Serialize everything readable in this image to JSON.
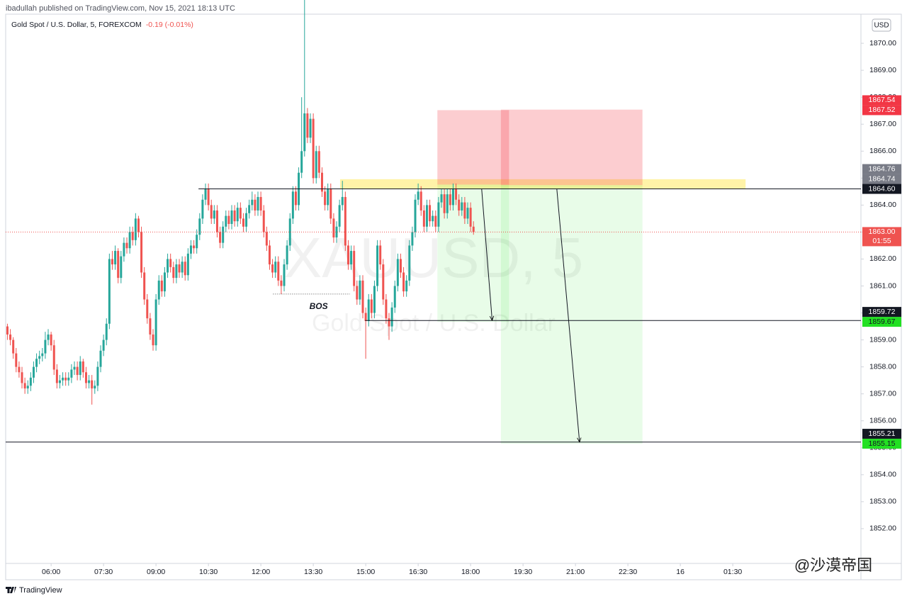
{
  "header": {
    "publisher": "ibadullah published on TradingView.com, Nov 15, 2021 18:13 UTC",
    "symbol": "Gold Spot / U.S. Dollar, 5, FOREXCOM",
    "change": "-0.19 (-0.01%)"
  },
  "chart_data": {
    "type": "candlestick",
    "currency": "USD",
    "watermark": "XAUUSD, 5",
    "watermark_sub": "Gold Spot / U.S. Dollar",
    "up_color": "#26a69a",
    "down_color": "#ef5350",
    "grid": false,
    "xlim": [
      282,
      1750
    ],
    "xticks": [
      {
        "value": 360,
        "label": "06:00"
      },
      {
        "value": 450,
        "label": "07:30"
      },
      {
        "value": 540,
        "label": "09:00"
      },
      {
        "value": 630,
        "label": "10:30"
      },
      {
        "value": 720,
        "label": "12:00"
      },
      {
        "value": 810,
        "label": "13:30"
      },
      {
        "value": 900,
        "label": "15:00"
      },
      {
        "value": 990,
        "label": "16:30"
      },
      {
        "value": 1080,
        "label": "18:00"
      },
      {
        "value": 1170,
        "label": "19:30"
      },
      {
        "value": 1260,
        "label": "21:00"
      },
      {
        "value": 1350,
        "label": "22:30"
      },
      {
        "value": 1440,
        "label": "16"
      },
      {
        "value": 1530,
        "label": "01:30"
      }
    ],
    "ylim": [
      1850.71,
      1871.08
    ],
    "yticks": [
      {
        "value": 1852,
        "label": "1852.00"
      },
      {
        "value": 1853,
        "label": "1853.00"
      },
      {
        "value": 1854,
        "label": "1854.00"
      },
      {
        "value": 1855,
        "label": "1855.00"
      },
      {
        "value": 1856,
        "label": "1856.00"
      },
      {
        "value": 1857,
        "label": "1857.00"
      },
      {
        "value": 1858,
        "label": "1858.00"
      },
      {
        "value": 1859,
        "label": "1859.00"
      },
      {
        "value": 1860,
        "label": "1860.00"
      },
      {
        "value": 1861,
        "label": "1861.00"
      },
      {
        "value": 1862,
        "label": "1862.00"
      },
      {
        "value": 1863,
        "label": "1863.00"
      },
      {
        "value": 1864,
        "label": "1864.00"
      },
      {
        "value": 1865,
        "label": "1865.00"
      },
      {
        "value": 1866,
        "label": "1866.00"
      },
      {
        "value": 1867,
        "label": "1867.00"
      },
      {
        "value": 1868,
        "label": "1868.00"
      },
      {
        "value": 1869,
        "label": "1869.00"
      },
      {
        "value": 1870,
        "label": "1870.00"
      }
    ],
    "x": [
      285,
      290,
      295,
      300,
      305,
      310,
      315,
      320,
      325,
      330,
      335,
      340,
      345,
      350,
      355,
      360,
      365,
      370,
      375,
      380,
      385,
      390,
      395,
      400,
      405,
      410,
      415,
      420,
      425,
      430,
      435,
      440,
      445,
      450,
      455,
      460,
      465,
      470,
      475,
      480,
      485,
      490,
      495,
      500,
      505,
      510,
      515,
      520,
      525,
      530,
      535,
      540,
      545,
      550,
      555,
      560,
      565,
      570,
      575,
      580,
      585,
      590,
      595,
      600,
      605,
      610,
      615,
      620,
      625,
      630,
      635,
      640,
      645,
      650,
      655,
      660,
      665,
      670,
      675,
      680,
      685,
      690,
      695,
      700,
      705,
      710,
      715,
      720,
      725,
      730,
      735,
      740,
      745,
      750,
      755,
      760,
      765,
      770,
      775,
      780,
      785,
      790,
      795,
      800,
      805,
      810,
      815,
      820,
      825,
      830,
      835,
      840,
      845,
      850,
      855,
      860,
      865,
      870,
      875,
      880,
      885,
      890,
      895,
      900,
      905,
      910,
      915,
      920,
      925,
      930,
      935,
      940,
      945,
      950,
      955,
      960,
      965,
      970,
      975,
      980,
      985,
      990,
      995,
      1000,
      1005,
      1010,
      1015,
      1020,
      1025,
      1030,
      1035,
      1040,
      1045,
      1050,
      1055,
      1060,
      1065,
      1070,
      1075,
      1080,
      1085
    ],
    "ohlc": [
      [
        1859.5,
        1859.6,
        1859.0,
        1859.2
      ],
      [
        1859.2,
        1859.4,
        1858.8,
        1859.0
      ],
      [
        1859.0,
        1859.1,
        1858.3,
        1858.5
      ],
      [
        1858.5,
        1858.7,
        1857.8,
        1858.0
      ],
      [
        1858.0,
        1858.2,
        1857.6,
        1857.8
      ],
      [
        1857.8,
        1858.0,
        1857.2,
        1857.4
      ],
      [
        1857.4,
        1857.6,
        1857.0,
        1857.2
      ],
      [
        1857.2,
        1857.5,
        1857.0,
        1857.3
      ],
      [
        1857.3,
        1857.8,
        1857.1,
        1857.6
      ],
      [
        1857.6,
        1858.2,
        1857.4,
        1858.0
      ],
      [
        1858.0,
        1858.5,
        1857.8,
        1858.3
      ],
      [
        1858.3,
        1858.6,
        1858.1,
        1858.4
      ],
      [
        1858.4,
        1858.7,
        1858.2,
        1858.5
      ],
      [
        1858.5,
        1859.3,
        1858.3,
        1859.0
      ],
      [
        1859.0,
        1859.4,
        1858.8,
        1859.2
      ],
      [
        1859.2,
        1859.3,
        1858.6,
        1858.8
      ],
      [
        1858.8,
        1859.0,
        1857.7,
        1857.9
      ],
      [
        1857.9,
        1858.1,
        1857.2,
        1857.4
      ],
      [
        1857.4,
        1857.7,
        1857.2,
        1857.5
      ],
      [
        1857.5,
        1857.8,
        1857.3,
        1857.6
      ],
      [
        1857.6,
        1857.8,
        1857.3,
        1857.5
      ],
      [
        1857.5,
        1857.8,
        1857.3,
        1857.6
      ],
      [
        1857.6,
        1858.1,
        1857.4,
        1857.9
      ],
      [
        1857.9,
        1858.2,
        1857.7,
        1858.0
      ],
      [
        1858.0,
        1858.2,
        1857.5,
        1857.7
      ],
      [
        1857.7,
        1858.4,
        1857.5,
        1858.2
      ],
      [
        1858.2,
        1858.3,
        1857.6,
        1857.8
      ],
      [
        1857.8,
        1858.0,
        1857.2,
        1857.4
      ],
      [
        1857.4,
        1857.7,
        1857.2,
        1857.5
      ],
      [
        1857.5,
        1857.7,
        1856.6,
        1857.2
      ],
      [
        1857.2,
        1857.5,
        1857.0,
        1857.3
      ],
      [
        1857.3,
        1858.2,
        1857.1,
        1858.0
      ],
      [
        1858.0,
        1858.8,
        1857.8,
        1858.6
      ],
      [
        1858.6,
        1859.2,
        1858.4,
        1859.0
      ],
      [
        1859.0,
        1859.8,
        1858.8,
        1859.6
      ],
      [
        1859.6,
        1862.2,
        1859.4,
        1862.0
      ],
      [
        1862.0,
        1862.3,
        1861.6,
        1861.8
      ],
      [
        1861.8,
        1862.5,
        1861.6,
        1862.3
      ],
      [
        1862.3,
        1862.4,
        1861.1,
        1861.3
      ],
      [
        1861.3,
        1862.3,
        1861.1,
        1862.1
      ],
      [
        1862.1,
        1862.8,
        1861.9,
        1862.6
      ],
      [
        1862.6,
        1862.8,
        1862.2,
        1862.4
      ],
      [
        1862.4,
        1863.2,
        1862.2,
        1863.0
      ],
      [
        1863.0,
        1863.2,
        1862.5,
        1862.7
      ],
      [
        1862.7,
        1863.7,
        1862.5,
        1863.5
      ],
      [
        1863.5,
        1863.6,
        1862.8,
        1863.0
      ],
      [
        1863.0,
        1863.2,
        1861.3,
        1861.5
      ],
      [
        1861.5,
        1861.7,
        1860.3,
        1860.5
      ],
      [
        1860.5,
        1860.7,
        1859.6,
        1859.8
      ],
      [
        1859.8,
        1860.0,
        1859.0,
        1859.2
      ],
      [
        1859.2,
        1859.4,
        1858.6,
        1858.8
      ],
      [
        1858.8,
        1860.7,
        1858.6,
        1860.5
      ],
      [
        1860.5,
        1861.4,
        1860.3,
        1861.2
      ],
      [
        1861.2,
        1861.4,
        1860.6,
        1860.8
      ],
      [
        1860.8,
        1861.7,
        1860.6,
        1861.5
      ],
      [
        1861.5,
        1862.2,
        1861.3,
        1862.0
      ],
      [
        1862.0,
        1862.2,
        1861.5,
        1861.7
      ],
      [
        1861.7,
        1861.9,
        1861.1,
        1861.3
      ],
      [
        1861.3,
        1862.0,
        1861.1,
        1861.8
      ],
      [
        1861.8,
        1862.0,
        1861.3,
        1861.5
      ],
      [
        1861.5,
        1862.1,
        1861.3,
        1861.9
      ],
      [
        1861.9,
        1862.1,
        1861.2,
        1861.4
      ],
      [
        1861.4,
        1862.4,
        1861.2,
        1862.2
      ],
      [
        1862.2,
        1862.7,
        1862.0,
        1862.5
      ],
      [
        1862.5,
        1862.7,
        1862.2,
        1862.4
      ],
      [
        1862.4,
        1863.1,
        1862.2,
        1862.9
      ],
      [
        1862.9,
        1863.7,
        1862.7,
        1863.5
      ],
      [
        1863.5,
        1864.4,
        1863.3,
        1864.2
      ],
      [
        1864.2,
        1864.8,
        1864.0,
        1864.6
      ],
      [
        1864.6,
        1864.8,
        1863.8,
        1864.0
      ],
      [
        1864.0,
        1864.2,
        1863.3,
        1863.5
      ],
      [
        1863.5,
        1864.0,
        1863.3,
        1863.8
      ],
      [
        1863.8,
        1864.0,
        1862.8,
        1863.0
      ],
      [
        1863.0,
        1863.2,
        1862.4,
        1862.6
      ],
      [
        1862.6,
        1863.4,
        1862.4,
        1863.2
      ],
      [
        1863.2,
        1863.8,
        1863.0,
        1863.6
      ],
      [
        1863.6,
        1863.8,
        1863.1,
        1863.3
      ],
      [
        1863.3,
        1864.0,
        1863.1,
        1863.8
      ],
      [
        1863.8,
        1864.0,
        1863.2,
        1863.4
      ],
      [
        1863.4,
        1864.1,
        1863.2,
        1863.9
      ],
      [
        1863.9,
        1864.1,
        1863.3,
        1863.5
      ],
      [
        1863.5,
        1863.7,
        1863.0,
        1863.2
      ],
      [
        1863.2,
        1863.9,
        1863.0,
        1863.7
      ],
      [
        1863.7,
        1864.2,
        1863.5,
        1864.0
      ],
      [
        1864.0,
        1864.5,
        1863.8,
        1864.2
      ],
      [
        1864.2,
        1864.4,
        1863.6,
        1863.8
      ],
      [
        1863.8,
        1864.5,
        1863.6,
        1864.3
      ],
      [
        1864.3,
        1864.5,
        1863.6,
        1863.8
      ],
      [
        1863.8,
        1864.0,
        1862.8,
        1863.0
      ],
      [
        1863.0,
        1863.2,
        1862.3,
        1862.5
      ],
      [
        1862.5,
        1862.7,
        1861.6,
        1861.8
      ],
      [
        1861.8,
        1862.0,
        1861.3,
        1861.5
      ],
      [
        1861.5,
        1862.1,
        1861.3,
        1861.9
      ],
      [
        1861.9,
        1862.1,
        1861.0,
        1861.2
      ],
      [
        1861.2,
        1861.4,
        1860.7,
        1861.0
      ],
      [
        1861.0,
        1862.0,
        1860.8,
        1861.8
      ],
      [
        1861.8,
        1862.7,
        1861.6,
        1862.5
      ],
      [
        1862.5,
        1863.7,
        1862.3,
        1863.5
      ],
      [
        1863.5,
        1864.7,
        1863.3,
        1864.5
      ],
      [
        1864.5,
        1864.7,
        1863.8,
        1864.0
      ],
      [
        1864.0,
        1865.4,
        1863.8,
        1865.2
      ],
      [
        1865.2,
        1868.0,
        1865.0,
        1866.0
      ],
      [
        1866.0,
        1873.0,
        1865.8,
        1867.4
      ],
      [
        1867.4,
        1867.6,
        1866.3,
        1866.5
      ],
      [
        1866.5,
        1867.4,
        1866.3,
        1867.2
      ],
      [
        1867.2,
        1867.4,
        1864.8,
        1865.0
      ],
      [
        1865.0,
        1866.2,
        1864.8,
        1866.0
      ],
      [
        1866.0,
        1866.2,
        1865.0,
        1865.2
      ],
      [
        1865.2,
        1865.4,
        1864.3,
        1864.5
      ],
      [
        1864.5,
        1864.7,
        1863.8,
        1864.0
      ],
      [
        1864.0,
        1864.8,
        1863.8,
        1864.6
      ],
      [
        1864.6,
        1864.8,
        1863.3,
        1863.5
      ],
      [
        1863.5,
        1863.7,
        1862.6,
        1862.8
      ],
      [
        1862.8,
        1863.4,
        1862.6,
        1863.2
      ],
      [
        1863.2,
        1864.2,
        1863.0,
        1864.0
      ],
      [
        1864.0,
        1864.9,
        1863.8,
        1864.3
      ],
      [
        1864.3,
        1864.5,
        1862.3,
        1862.5
      ],
      [
        1862.5,
        1862.7,
        1861.6,
        1861.8
      ],
      [
        1861.8,
        1862.5,
        1861.6,
        1862.3
      ],
      [
        1862.3,
        1862.5,
        1860.8,
        1861.0
      ],
      [
        1861.0,
        1861.2,
        1860.3,
        1860.5
      ],
      [
        1860.5,
        1861.4,
        1860.3,
        1861.2
      ],
      [
        1861.2,
        1861.4,
        1859.8,
        1860.0
      ],
      [
        1860.0,
        1860.2,
        1858.3,
        1859.7
      ],
      [
        1859.7,
        1860.7,
        1859.5,
        1860.5
      ],
      [
        1860.5,
        1860.7,
        1859.8,
        1860.0
      ],
      [
        1860.0,
        1861.2,
        1859.8,
        1861.0
      ],
      [
        1861.0,
        1862.7,
        1860.8,
        1862.5
      ],
      [
        1862.5,
        1862.7,
        1861.6,
        1861.8
      ],
      [
        1861.8,
        1862.0,
        1860.3,
        1860.5
      ],
      [
        1860.5,
        1860.7,
        1859.6,
        1859.8
      ],
      [
        1859.8,
        1860.0,
        1859.0,
        1859.5
      ],
      [
        1859.5,
        1860.4,
        1859.3,
        1860.2
      ],
      [
        1860.2,
        1861.2,
        1860.0,
        1861.0
      ],
      [
        1861.0,
        1862.2,
        1860.8,
        1862.0
      ],
      [
        1862.0,
        1862.2,
        1861.3,
        1861.5
      ],
      [
        1861.5,
        1861.7,
        1860.6,
        1860.8
      ],
      [
        1860.8,
        1861.4,
        1860.6,
        1861.2
      ],
      [
        1861.2,
        1862.7,
        1861.0,
        1862.5
      ],
      [
        1862.5,
        1863.2,
        1862.3,
        1863.0
      ],
      [
        1863.0,
        1864.4,
        1862.8,
        1864.2
      ],
      [
        1864.2,
        1864.8,
        1864.0,
        1864.5
      ],
      [
        1864.5,
        1864.7,
        1863.6,
        1863.8
      ],
      [
        1863.8,
        1864.0,
        1863.0,
        1863.2
      ],
      [
        1863.2,
        1864.2,
        1863.0,
        1864.0
      ],
      [
        1864.0,
        1864.2,
        1863.2,
        1863.4
      ],
      [
        1863.4,
        1863.8,
        1863.2,
        1863.6
      ],
      [
        1863.6,
        1863.8,
        1863.0,
        1863.2
      ],
      [
        1863.2,
        1864.3,
        1863.0,
        1864.1
      ],
      [
        1864.1,
        1864.6,
        1863.9,
        1864.4
      ],
      [
        1864.4,
        1864.6,
        1863.5,
        1863.7
      ],
      [
        1863.7,
        1864.6,
        1863.5,
        1864.4
      ],
      [
        1864.4,
        1864.6,
        1863.8,
        1864.0
      ],
      [
        1864.0,
        1864.8,
        1863.8,
        1864.6
      ],
      [
        1864.6,
        1864.8,
        1864.0,
        1864.2
      ],
      [
        1864.2,
        1864.4,
        1863.6,
        1863.8
      ],
      [
        1863.8,
        1864.3,
        1863.6,
        1864.1
      ],
      [
        1864.1,
        1864.3,
        1863.3,
        1863.5
      ],
      [
        1863.5,
        1864.1,
        1863.3,
        1863.9
      ],
      [
        1863.9,
        1864.1,
        1863.0,
        1863.2
      ],
      [
        1863.2,
        1863.4,
        1862.9,
        1863.0
      ]
    ],
    "zone": {
      "from": 856,
      "to": 1552,
      "low": 1864.6,
      "high": 1864.96,
      "color": "#fff3a8"
    },
    "levels": [
      {
        "price": {
          "value": 1864.6,
          "label": "1864.60"
        },
        "from": 613
      },
      {
        "price": 1859.72,
        "from": 899
      },
      {
        "price": 1855.21,
        "from": 282
      }
    ],
    "last_price": {
      "price": {
        "value": 1863,
        "label": "1863.00"
      },
      "countdown": "01:55",
      "color": "#ef5350"
    },
    "bos": {
      "text": "BOS",
      "price": 1860.7,
      "from": 741,
      "to": 873
    },
    "positions": [
      {
        "from": 1023,
        "to": 1146,
        "entry": 1864.76,
        "stop": 1867.52,
        "target": 1859.67
      },
      {
        "from": 1132,
        "to": 1375,
        "entry": 1864.74,
        "stop": 1867.54,
        "target": 1855.15
      }
    ],
    "arrows": [
      {
        "from": [
          1099,
          1864.6
        ],
        "to": [
          1117,
          1859.72
        ]
      },
      {
        "from": [
          1228,
          1864.6
        ],
        "to": [
          1267,
          1855.21
        ]
      }
    ]
  },
  "footer": {
    "brand": "TradingView",
    "credit": "@沙漠帝国"
  }
}
